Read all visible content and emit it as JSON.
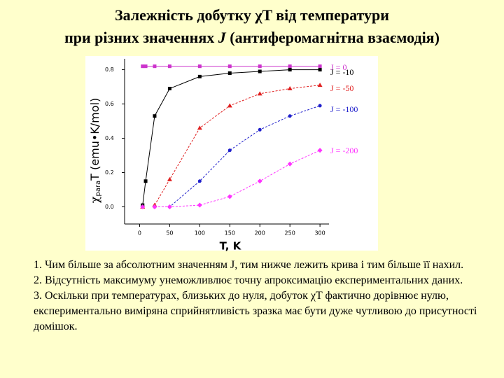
{
  "title": {
    "line1": "Залежність добутку χT від температури",
    "line2_parts": [
      "при різних значеннях ",
      "J",
      " (антиферомагнітна взаємодія)"
    ]
  },
  "chart_data": {
    "type": "line",
    "x_label": "T, K",
    "y_label": {
      "symbol": "χ",
      "subscript": "para",
      "text": "T (emu•K/mol)"
    },
    "x": [
      5,
      10,
      25,
      50,
      100,
      150,
      200,
      250,
      300
    ],
    "xlim": [
      -25,
      315
    ],
    "xticks": [
      0,
      50,
      100,
      150,
      200,
      250,
      300
    ],
    "ylim": [
      -0.1,
      0.88
    ],
    "yticks": [
      {
        "value": 0,
        "label": "0.0"
      },
      {
        "value": 0.2,
        "label": "0.2"
      },
      {
        "value": 0.4,
        "label": "0.4"
      },
      {
        "value": 0.6,
        "label": "0.6"
      },
      {
        "value": 0.8,
        "label": "0.8"
      }
    ],
    "series": [
      {
        "name": "J = 0",
        "color": "#cc33cc",
        "marker": "square",
        "values": [
          0.82,
          0.82,
          0.82,
          0.82,
          0.82,
          0.82,
          0.82,
          0.82,
          0.82
        ]
      },
      {
        "name": "J = -10",
        "color": "#000000",
        "marker": "square",
        "values": [
          0.01,
          0.15,
          0.53,
          0.69,
          0.76,
          0.78,
          0.79,
          0.8,
          0.8
        ]
      },
      {
        "name": "J = -50",
        "color": "#e02020",
        "marker": "triangle",
        "values": [
          0,
          null,
          0.01,
          0.16,
          0.46,
          0.59,
          0.66,
          0.69,
          0.71
        ]
      },
      {
        "name": "J = -100",
        "color": "#2020cc",
        "marker": "circle",
        "values": [
          0,
          null,
          0,
          0,
          0.15,
          0.33,
          0.45,
          0.53,
          0.59
        ]
      },
      {
        "name": "J = -200",
        "color": "#ff33ff",
        "marker": "diamond",
        "values": [
          0,
          null,
          0,
          0,
          0.01,
          0.06,
          0.15,
          0.25,
          0.33
        ]
      }
    ]
  },
  "notes": [
    "1. Чим більше за абсолютним значенням J, тим нижче лежить крива і тим більше її нахил.",
    "2. Відсутність максимуму унеможливлює точну апроксимацію експериментальних даних.",
    "3. Оскільки при температурах, близьких до нуля, добуток χT фактично дорівнює нулю, експериментально виміряна сприйнятливість зразка має бути дуже чутливою до присутності домішок."
  ]
}
